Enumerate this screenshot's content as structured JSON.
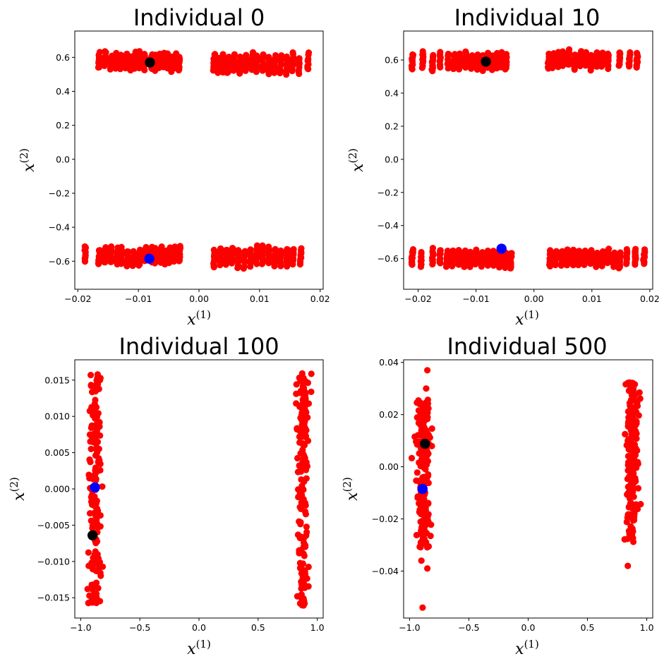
{
  "colors": {
    "population": "#ff0000",
    "black_marker": "#000000",
    "blue_marker": "#0000ff"
  },
  "chart_data": [
    {
      "type": "scatter",
      "title": "Individual 0",
      "xlabel": "x",
      "xlabel_sup": "(1)",
      "ylabel": "x",
      "ylabel_sup": "(2)",
      "xlim": [
        -0.0205,
        0.0205
      ],
      "ylim": [
        -0.765,
        0.755
      ],
      "xticks": [
        -0.02,
        -0.01,
        0.0,
        0.01,
        0.02
      ],
      "xtick_labels": [
        "−0.02",
        "−0.01",
        "0.00",
        "0.01",
        "0.02"
      ],
      "yticks": [
        0.6,
        0.4,
        0.2,
        0.0,
        -0.2,
        -0.4,
        -0.6
      ],
      "ytick_labels": [
        "0.6",
        "0.4",
        "0.2",
        "0.0",
        "−0.2",
        "−0.4",
        "−0.6"
      ],
      "clusters": [
        {
          "x_values": [
            -0.0165,
            -0.0155,
            -0.0145,
            -0.0138,
            -0.013,
            -0.012,
            -0.0112,
            -0.0105,
            -0.0098,
            -0.009,
            -0.0078,
            -0.0072,
            -0.0065,
            -0.0058,
            -0.0052,
            -0.0045,
            -0.0038,
            -0.0033
          ],
          "y_center": 0.575,
          "y_spread": 0.055
        },
        {
          "x_values": [
            0.0025,
            0.0032,
            0.004,
            0.0048,
            0.0058,
            0.0068,
            0.0078,
            0.0088,
            0.0095,
            0.0105,
            0.0115,
            0.0125,
            0.0135,
            0.0145,
            0.0155,
            0.0165,
            0.018
          ],
          "y_center": 0.565,
          "y_spread": 0.06
        },
        {
          "x_values": [
            -0.0188,
            -0.0165,
            -0.0155,
            -0.0145,
            -0.0135,
            -0.0128,
            -0.0118,
            -0.0108,
            -0.0098,
            -0.0088,
            -0.0078,
            -0.0072,
            -0.0063,
            -0.0055,
            -0.0048,
            -0.004,
            -0.0032
          ],
          "y_center": -0.57,
          "y_spread": 0.055
        },
        {
          "x_values": [
            0.0025,
            0.0035,
            0.0045,
            0.0055,
            0.0065,
            0.0075,
            0.0085,
            0.0095,
            0.0105,
            0.0115,
            0.0125,
            0.0135,
            0.0145,
            0.0155,
            0.0168
          ],
          "y_center": -0.575,
          "y_spread": 0.06
        }
      ],
      "highlights": [
        {
          "color": "black",
          "x": -0.0081,
          "y": 0.57
        },
        {
          "color": "blue",
          "x": -0.0082,
          "y": -0.585
        }
      ]
    },
    {
      "type": "scatter",
      "title": "Individual 10",
      "xlabel": "x",
      "xlabel_sup": "(1)",
      "ylabel": "x",
      "ylabel_sup": "(2)",
      "xlim": [
        -0.0225,
        0.0205
      ],
      "ylim": [
        -0.785,
        0.775
      ],
      "xticks": [
        -0.02,
        -0.01,
        0.0,
        0.01,
        0.02
      ],
      "xtick_labels": [
        "−0.02",
        "−0.01",
        "0.00",
        "0.01",
        "0.02"
      ],
      "yticks": [
        0.6,
        0.4,
        0.2,
        0.0,
        -0.2,
        -0.4,
        -0.6
      ],
      "ytick_labels": [
        "0.6",
        "0.4",
        "0.2",
        "0.0",
        "−0.2",
        "−0.4",
        "−0.6"
      ],
      "clusters": [
        {
          "x_values": [
            -0.021,
            -0.0192,
            -0.0175,
            -0.0162,
            -0.0148,
            -0.0138,
            -0.0128,
            -0.0118,
            -0.0108,
            -0.0098,
            -0.0088,
            -0.008,
            -0.0072,
            -0.0064,
            -0.0056,
            -0.0048
          ],
          "y_center": 0.59,
          "y_spread": 0.055
        },
        {
          "x_values": [
            0.0025,
            0.0033,
            0.0042,
            0.005,
            0.006,
            0.007,
            0.008,
            0.009,
            0.0098,
            0.0108,
            0.0118,
            0.0128,
            0.0148,
            0.0165,
            0.0178
          ],
          "y_center": 0.6,
          "y_spread": 0.055
        },
        {
          "x_values": [
            -0.021,
            -0.0195,
            -0.0175,
            -0.0162,
            -0.015,
            -0.014,
            -0.013,
            -0.012,
            -0.011,
            -0.01,
            -0.009,
            -0.008,
            -0.007,
            -0.006,
            -0.005,
            -0.004
          ],
          "y_center": -0.6,
          "y_spread": 0.055
        },
        {
          "x_values": [
            0.0028,
            0.0038,
            0.0048,
            0.0058,
            0.0068,
            0.0078,
            0.0088,
            0.0098,
            0.0108,
            0.0118,
            0.0128,
            0.0138,
            0.0148,
            0.016,
            0.0175,
            0.019
          ],
          "y_center": -0.6,
          "y_spread": 0.055
        }
      ],
      "highlights": [
        {
          "color": "black",
          "x": -0.0083,
          "y": 0.59
        },
        {
          "color": "blue",
          "x": -0.0056,
          "y": -0.54
        }
      ]
    },
    {
      "type": "scatter",
      "title": "Individual 100",
      "xlabel": "x",
      "xlabel_sup": "(1)",
      "ylabel": "x",
      "ylabel_sup": "(2)",
      "xlim": [
        -1.05,
        1.05
      ],
      "ylim": [
        -0.0178,
        0.0178
      ],
      "xticks": [
        -1.0,
        -0.5,
        0.0,
        0.5,
        1.0
      ],
      "xtick_labels": [
        "−1.0",
        "−0.5",
        "0.0",
        "0.5",
        "1.0"
      ],
      "yticks": [
        0.015,
        0.01,
        0.005,
        0.0,
        -0.005,
        -0.01,
        -0.015
      ],
      "ytick_labels": [
        "0.015",
        "0.010",
        "0.005",
        "0.000",
        "−0.005",
        "−0.010",
        "−0.015"
      ],
      "clusters": [
        {
          "x_center": -0.88,
          "x_spread": 0.09,
          "y_range": [
            -0.016,
            0.016
          ],
          "count": 170
        },
        {
          "x_center": 0.88,
          "x_spread": 0.09,
          "y_range": [
            -0.0162,
            0.016
          ],
          "count": 170
        }
      ],
      "highlights": [
        {
          "color": "blue",
          "x": -0.88,
          "y": 0.0002
        },
        {
          "color": "black",
          "x": -0.9,
          "y": -0.0064
        }
      ]
    },
    {
      "type": "scatter",
      "title": "Individual 500",
      "xlabel": "x",
      "xlabel_sup": "(1)",
      "ylabel": "x",
      "ylabel_sup": "(2)",
      "xlim": [
        -1.05,
        1.05
      ],
      "ylim": [
        -0.058,
        0.041
      ],
      "xticks": [
        -1.0,
        -0.5,
        0.0,
        0.5,
        1.0
      ],
      "xtick_labels": [
        "−1.0",
        "−0.5",
        "0.0",
        "0.5",
        "1.0"
      ],
      "yticks": [
        0.04,
        0.02,
        0.0,
        -0.02,
        -0.04
      ],
      "ytick_labels": [
        "0.04",
        "0.02",
        "0.00",
        "−0.02",
        "−0.04"
      ],
      "clusters": [
        {
          "x_center": -0.88,
          "x_spread": 0.1,
          "y_range": [
            -0.031,
            0.026
          ],
          "count": 200
        },
        {
          "x_center": 0.88,
          "x_spread": 0.1,
          "y_range": [
            -0.029,
            0.033
          ],
          "count": 170
        }
      ],
      "outliers": [
        {
          "x": -0.85,
          "y": 0.037
        },
        {
          "x": -0.86,
          "y": 0.03
        },
        {
          "x": -0.9,
          "y": -0.036
        },
        {
          "x": -0.85,
          "y": -0.039
        },
        {
          "x": -0.89,
          "y": -0.054
        },
        {
          "x": 0.84,
          "y": -0.038
        }
      ],
      "highlights": [
        {
          "color": "black",
          "x": -0.87,
          "y": 0.0088
        },
        {
          "color": "blue",
          "x": -0.89,
          "y": -0.0085
        }
      ]
    }
  ]
}
